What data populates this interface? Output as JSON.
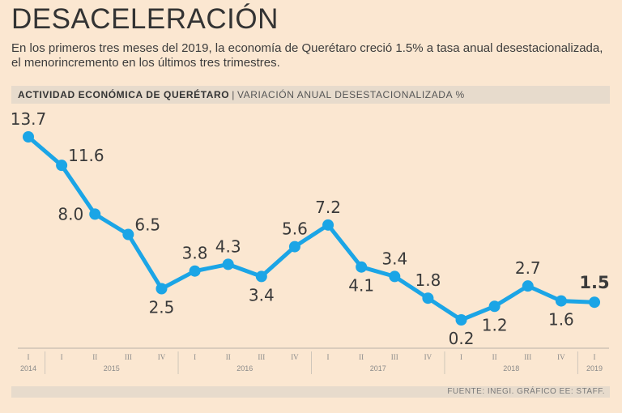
{
  "header": {
    "title": "DESACELERACIÓN",
    "subtitle": "En los primeros tres meses del 2019, la economía de Querétaro creció 1.5% a tasa anual desestacionalizada, el menorincremento en los últimos tres trimestres."
  },
  "bar": {
    "label": "ACTIVIDAD ECONÓMICA DE QUERÉTARO",
    "separator": "|",
    "sublabel": "VARIACIÓN ANUAL DESESTACIONALIZADA %"
  },
  "footer": {
    "source": "FUENTE: INEGI. GRÁFICO EE: STAFF."
  },
  "colors": {
    "line": "#1ba5e6",
    "background": "#fbe7d1",
    "band": "#e7dbcc"
  },
  "chart_data": {
    "type": "line",
    "title": "ACTIVIDAD ECONÓMICA DE QUERÉTARO",
    "ylabel": "VARIACIÓN ANUAL DESESTACIONALIZADA %",
    "categories": [
      "I",
      "I",
      "II",
      "III",
      "IV",
      "I",
      "II",
      "III",
      "IV",
      "I",
      "II",
      "III",
      "IV",
      "I",
      "II",
      "III",
      "IV",
      "I"
    ],
    "values": [
      13.7,
      11.6,
      8.0,
      6.5,
      2.5,
      3.8,
      4.3,
      3.4,
      5.6,
      7.2,
      4.1,
      3.4,
      1.8,
      0.2,
      1.2,
      2.7,
      1.6,
      1.5
    ],
    "value_labels": [
      "13.7",
      "11.6",
      "8.0",
      "6.5",
      "2.5",
      "3.8",
      "4.3",
      "3.4",
      "5.6",
      "7.2",
      "4.1",
      "3.4",
      "1.8",
      "0.2",
      "1.2",
      "2.7",
      "1.6",
      "1.5"
    ],
    "label_positions": [
      "above",
      "right",
      "left",
      "right",
      "below",
      "above",
      "above",
      "below",
      "above",
      "above",
      "below",
      "above",
      "above",
      "below",
      "below",
      "above",
      "below",
      "above"
    ],
    "years": [
      {
        "label": "2014",
        "from": 0,
        "to": 0
      },
      {
        "label": "2015",
        "from": 1,
        "to": 4
      },
      {
        "label": "2016",
        "from": 5,
        "to": 8
      },
      {
        "label": "2017",
        "from": 9,
        "to": 12
      },
      {
        "label": "2018",
        "from": 13,
        "to": 16
      },
      {
        "label": "2019",
        "from": 17,
        "to": 17
      }
    ],
    "ylim": [
      0.2,
      13.7
    ]
  }
}
